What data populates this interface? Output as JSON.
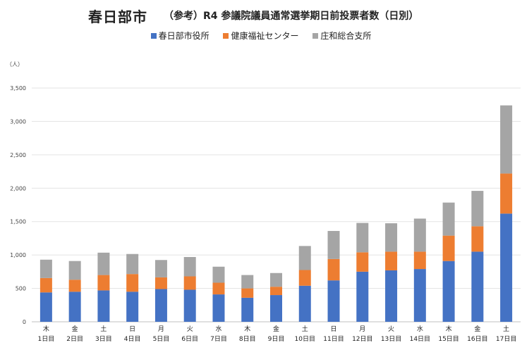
{
  "title": "春日部市",
  "subtitle": "（参考）R4 参議院議員通常選挙期日前投票者数（日別）",
  "unit": "（人）",
  "colors": {
    "s1": "#4472c4",
    "s2": "#ed7d31",
    "s3": "#a5a5a5"
  },
  "chart_data": {
    "type": "bar",
    "stacked": true,
    "title": "春日部市　（参考）R4 参議院議員通常選挙期日前投票者数（日別）",
    "ylabel": "（人）",
    "ylim": [
      0,
      3500
    ],
    "yticks": [
      "0",
      "500",
      "1,000",
      "1,500",
      "2,000",
      "2,500",
      "3,000",
      "3,500"
    ],
    "ytick_values": [
      0,
      500,
      1000,
      1500,
      2000,
      2500,
      3000,
      3500
    ],
    "grid": true,
    "legend_position": "top",
    "weekdays": [
      "木",
      "金",
      "土",
      "日",
      "月",
      "火",
      "水",
      "木",
      "金",
      "土",
      "日",
      "月",
      "火",
      "水",
      "木",
      "金",
      "土"
    ],
    "categories": [
      "1日目",
      "2日目",
      "3日目",
      "4日目",
      "5日目",
      "6日目",
      "7日目",
      "8日目",
      "9日目",
      "10日目",
      "11日目",
      "12日目",
      "13日目",
      "14日目",
      "15日目",
      "16日目",
      "17日目"
    ],
    "series": [
      {
        "name": "春日部市役所",
        "color": "#4472c4",
        "values": [
          440,
          450,
          470,
          450,
          490,
          480,
          410,
          360,
          400,
          540,
          620,
          750,
          770,
          790,
          910,
          1050,
          1620
        ]
      },
      {
        "name": "健康福祉センター",
        "color": "#ed7d31",
        "values": [
          215,
          180,
          230,
          265,
          175,
          200,
          175,
          140,
          125,
          235,
          320,
          290,
          280,
          260,
          380,
          380,
          600
        ]
      },
      {
        "name": "庄和総合支所",
        "color": "#a5a5a5",
        "values": [
          275,
          280,
          335,
          300,
          260,
          290,
          240,
          200,
          205,
          360,
          420,
          440,
          425,
          495,
          495,
          530,
          1020
        ]
      }
    ]
  }
}
